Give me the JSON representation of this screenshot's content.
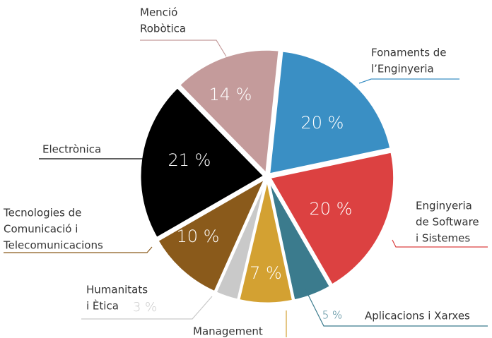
{
  "chart_data": {
    "type": "pie",
    "categories": [
      [
        "Fonaments de",
        "l’Enginyeria"
      ],
      [
        "Enginyeria",
        "de Software",
        "i Sistemes"
      ],
      [
        "Aplicacions i Xarxes"
      ],
      [
        "Management"
      ],
      [
        "Humanitats",
        "i Ètica"
      ],
      [
        "Tecnologies de",
        "Comunicació i",
        "Telecomunicacions"
      ],
      [
        "Electrònica"
      ],
      [
        "Menció",
        "Robòtica"
      ]
    ],
    "values": [
      20,
      20,
      5,
      7,
      3,
      10,
      21,
      14
    ],
    "value_labels": [
      "20 %",
      "20 %",
      "5 %",
      "7 %",
      "3 %",
      "10 %",
      "21 %",
      "14 %"
    ],
    "colors": [
      "#3a8fc4",
      "#dc4141",
      "#3b7b8d",
      "#d3a132",
      "#c9c9c9",
      "#8a5a1b",
      "#000000",
      "#c49b9b"
    ],
    "start_angle": 6
  }
}
